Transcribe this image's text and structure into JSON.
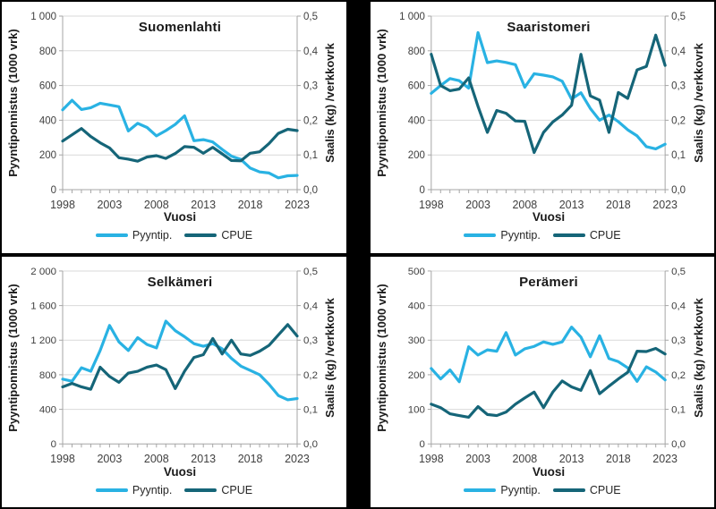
{
  "page": {
    "background": "#000000",
    "panel_background": "#ffffff"
  },
  "colors": {
    "pyyntip": "#29b2e3",
    "cpue": "#156578",
    "gridline": "#d9d9d9",
    "axis": "#a6a6a6",
    "tick_text": "#404040",
    "title_text": "#1a1a1a"
  },
  "axes": {
    "y_left_label": "Pyyntiponnistus (1000 vrk)",
    "y_right_label": "Saalis (kg) /verkkovrk",
    "x_label": "Vuosi",
    "right_ticks": [
      "0,0",
      "0,1",
      "0,2",
      "0,3",
      "0,4",
      "0,5"
    ],
    "right_max": 0.5,
    "x_tick_labels": [
      "1998",
      "2003",
      "2008",
      "2013",
      "2018",
      "2023"
    ]
  },
  "legend": {
    "pyyntip_label": "Pyyntip.",
    "cpue_label": "CPUE"
  },
  "chart_data": {
    "type": "line",
    "categories": [
      1998,
      1999,
      2000,
      2001,
      2002,
      2003,
      2004,
      2005,
      2006,
      2007,
      2008,
      2009,
      2010,
      2011,
      2012,
      2013,
      2014,
      2015,
      2016,
      2017,
      2018,
      2019,
      2020,
      2021,
      2022,
      2023
    ],
    "xlabel": "Vuosi",
    "ylabel_left": "Pyyntiponnistus (1000 vrk)",
    "ylabel_right": "Saalis (kg) /verkkovrk",
    "right_ylim": [
      0,
      0.5
    ],
    "grid": "horizontal",
    "legend_position": "bottom",
    "charts": [
      {
        "title": "Suomenlahti",
        "left_max": 1000,
        "left_ticks": [
          "0",
          "200",
          "400",
          "600",
          "800",
          "1 000"
        ],
        "series": [
          {
            "name": "Pyyntip.",
            "axis": "left",
            "values": [
              460,
              515,
              462,
              472,
              498,
              488,
              478,
              338,
              382,
              358,
              310,
              340,
              376,
              425,
              282,
              288,
              275,
              232,
              193,
              174,
              124,
              102,
              96,
              68,
              80,
              82
            ]
          },
          {
            "name": "CPUE",
            "axis": "right",
            "values": [
              0.14,
              0.158,
              0.176,
              0.153,
              0.135,
              0.12,
              0.092,
              0.088,
              0.082,
              0.094,
              0.098,
              0.09,
              0.104,
              0.124,
              0.122,
              0.105,
              0.122,
              0.103,
              0.084,
              0.083,
              0.105,
              0.109,
              0.133,
              0.162,
              0.174,
              0.17
            ]
          }
        ]
      },
      {
        "title": "Saaristomeri",
        "left_max": 1000,
        "left_ticks": [
          "0",
          "200",
          "400",
          "600",
          "800",
          "1 000"
        ],
        "series": [
          {
            "name": "Pyyntip.",
            "axis": "left",
            "values": [
              555,
              600,
              640,
              628,
              585,
              905,
              732,
              742,
              733,
              720,
              590,
              668,
              660,
              650,
              625,
              522,
              558,
              468,
              400,
              430,
              392,
              345,
              310,
              248,
              235,
              262
            ]
          },
          {
            "name": "CPUE",
            "axis": "right",
            "values": [
              0.39,
              0.3,
              0.285,
              0.29,
              0.322,
              0.24,
              0.165,
              0.228,
              0.22,
              0.198,
              0.197,
              0.107,
              0.165,
              0.195,
              0.215,
              0.243,
              0.39,
              0.27,
              0.258,
              0.165,
              0.28,
              0.263,
              0.345,
              0.355,
              0.445,
              0.358
            ]
          }
        ]
      },
      {
        "title": "Selkämeri",
        "left_max": 2000,
        "left_ticks": [
          "0",
          "400",
          "800",
          "1 200",
          "1 600",
          "2 000"
        ],
        "series": [
          {
            "name": "Pyyntip.",
            "axis": "left",
            "values": [
              750,
              725,
              880,
              840,
              1080,
              1370,
              1180,
              1080,
              1230,
              1150,
              1110,
              1420,
              1310,
              1240,
              1160,
              1130,
              1160,
              1100,
              990,
              900,
              850,
              800,
              690,
              560,
              510,
              525
            ]
          },
          {
            "name": "CPUE",
            "axis": "right",
            "values": [
              0.165,
              0.175,
              0.165,
              0.158,
              0.222,
              0.195,
              0.178,
              0.205,
              0.21,
              0.222,
              0.228,
              0.215,
              0.16,
              0.21,
              0.25,
              0.258,
              0.305,
              0.26,
              0.3,
              0.26,
              0.256,
              0.268,
              0.285,
              0.315,
              0.345,
              0.312
            ]
          }
        ]
      },
      {
        "title": "Perämeri",
        "left_max": 500,
        "left_ticks": [
          "0",
          "100",
          "200",
          "300",
          "400",
          "500"
        ],
        "series": [
          {
            "name": "Pyyntip.",
            "axis": "left",
            "values": [
              218,
              188,
              214,
              180,
              281,
              257,
              272,
              268,
              322,
              257,
              275,
              282,
              295,
              288,
              295,
              338,
              309,
              252,
              313,
              247,
              238,
              220,
              181,
              223,
              208,
              185
            ]
          },
          {
            "name": "CPUE",
            "axis": "right",
            "values": [
              0.115,
              0.105,
              0.087,
              0.082,
              0.077,
              0.108,
              0.085,
              0.082,
              0.092,
              0.115,
              0.133,
              0.15,
              0.105,
              0.15,
              0.182,
              0.165,
              0.155,
              0.212,
              0.145,
              0.167,
              0.188,
              0.207,
              0.268,
              0.267,
              0.276,
              0.26
            ]
          }
        ]
      }
    ]
  }
}
